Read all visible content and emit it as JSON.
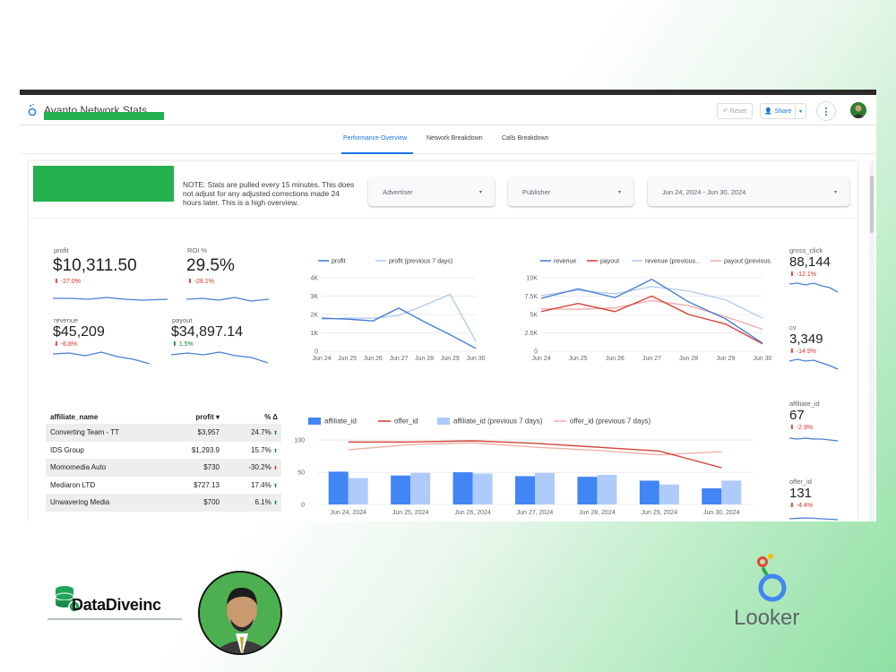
{
  "app": {
    "title": "Avanto Network Stats",
    "reset_label": "Reset",
    "share_label": "Share"
  },
  "tabs": [
    "Performance Overview",
    "Network Breakdown",
    "Calls Breakdown"
  ],
  "note": "NOTE: Stats are pulled every 15 minutes. This does not adjust for any adjusted corrections made 24 hours later. This is a high overview.",
  "filters": {
    "advertiser": "Advertiser",
    "publisher": "Publisher",
    "date_range": "Jun 24, 2024 - Jun 30, 2024"
  },
  "kpis": {
    "profit": {
      "label": "profit",
      "value": "$10,311.50",
      "delta": "-27.0%",
      "dir": "down"
    },
    "roi": {
      "label": "ROI %",
      "value": "29.5%",
      "delta": "-28.1%",
      "dir": "down"
    },
    "revenue": {
      "label": "revenue",
      "value": "$45,209",
      "delta": "-6.8%",
      "dir": "down"
    },
    "payout": {
      "label": "payout",
      "value": "$34,897.14",
      "delta": "1.5%",
      "dir": "up"
    },
    "gross_click": {
      "label": "gross_click",
      "value": "88,144",
      "delta": "-12.1%",
      "dir": "down"
    },
    "cv": {
      "label": "cv",
      "value": "3,349",
      "delta": "-14.9%",
      "dir": "down"
    },
    "affiliate_id": {
      "label": "affiliate_id",
      "value": "67",
      "delta": "-2.9%",
      "dir": "down"
    },
    "offer_id": {
      "label": "offer_id",
      "value": "131",
      "delta": "-4.4%",
      "dir": "down"
    }
  },
  "table": {
    "headers": [
      "affiliate_name",
      "profit ▾",
      "% Δ"
    ],
    "rows": [
      {
        "name": "Converting Team - TT",
        "profit": "$3,957",
        "delta": "24.7%",
        "dir": "up"
      },
      {
        "name": "IDS Group",
        "profit": "$1,293.9",
        "delta": "15.7%",
        "dir": "up"
      },
      {
        "name": "Momomedia Auto",
        "profit": "$730",
        "delta": "-30.2%",
        "dir": "down"
      },
      {
        "name": "Mediaron LTD",
        "profit": "$727.13",
        "delta": "17.4%",
        "dir": "up"
      },
      {
        "name": "Unwavering Media",
        "profit": "$700",
        "delta": "6.1%",
        "dir": "up"
      }
    ]
  },
  "chart_data": [
    {
      "type": "line",
      "x": [
        "Jun 24",
        "Jun 25",
        "Jun 26",
        "Jun 27",
        "Jun 28",
        "Jun 29",
        "Jun 30"
      ],
      "yticks": [
        "0",
        "1K",
        "2K",
        "3K",
        "4K"
      ],
      "ylim": [
        0,
        4000
      ],
      "legend": "top",
      "series": [
        {
          "name": "profit",
          "color": "#4a7fd4",
          "values": [
            1800,
            1750,
            1650,
            2350,
            1600,
            900,
            150
          ]
        },
        {
          "name": "profit (previous 7 days)",
          "color": "#b4ccf0",
          "values": [
            1750,
            1800,
            1800,
            1950,
            2500,
            3100,
            550
          ]
        }
      ]
    },
    {
      "type": "line",
      "x": [
        "Jun 24",
        "Jun 25",
        "Jun 26",
        "Jun 27",
        "Jun 28",
        "Jun 29",
        "Jun 30"
      ],
      "yticks": [
        "0",
        "2.5K",
        "5K",
        "7.5K",
        "10K"
      ],
      "ylim": [
        0,
        10000
      ],
      "legend": "top",
      "series": [
        {
          "name": "revenue",
          "color": "#4a7fd4",
          "values": [
            7200,
            8500,
            7300,
            9800,
            6700,
            4400,
            1100
          ]
        },
        {
          "name": "payout",
          "color": "#d4443a",
          "values": [
            5400,
            6500,
            5400,
            7500,
            5000,
            3700,
            1000
          ]
        },
        {
          "name": "revenue (previous...",
          "color": "#b4ccf0",
          "values": [
            7600,
            8300,
            7800,
            8800,
            8200,
            7000,
            4500
          ]
        },
        {
          "name": "payout (previous...",
          "color": "#f0b0ab",
          "values": [
            5800,
            5700,
            5900,
            6900,
            6200,
            4700,
            3000
          ]
        }
      ]
    },
    {
      "type": "bar",
      "categories": [
        "Jun 24, 2024",
        "Jun 25, 2024",
        "Jun 26, 2024",
        "Jun 27, 2024",
        "Jun 28, 2024",
        "Jun 29, 2024",
        "Jun 30, 2024"
      ],
      "yticks": [
        "0",
        "50",
        "100"
      ],
      "ylim": [
        0,
        110
      ],
      "legend": "top",
      "series": [
        {
          "name": "affiliate_id",
          "kind": "bar",
          "color": "#4285f4",
          "values": [
            51,
            45,
            50,
            44,
            43,
            37,
            25
          ]
        },
        {
          "name": "offer_id",
          "kind": "line",
          "color": "#d4443a",
          "values": [
            97,
            97,
            99,
            95,
            89,
            83,
            57
          ]
        },
        {
          "name": "affiliate_id (previous 7 days)",
          "kind": "bar",
          "color": "#aecbfa",
          "values": [
            41,
            49,
            48,
            49,
            46,
            31,
            37
          ]
        },
        {
          "name": "offer_id (previous 7 days)",
          "kind": "line",
          "color": "#f0b0ab",
          "values": [
            85,
            93,
            96,
            89,
            84,
            77,
            82
          ]
        }
      ]
    }
  ],
  "branding": {
    "datadive": "DataDiveinc",
    "looker": "Looker"
  }
}
